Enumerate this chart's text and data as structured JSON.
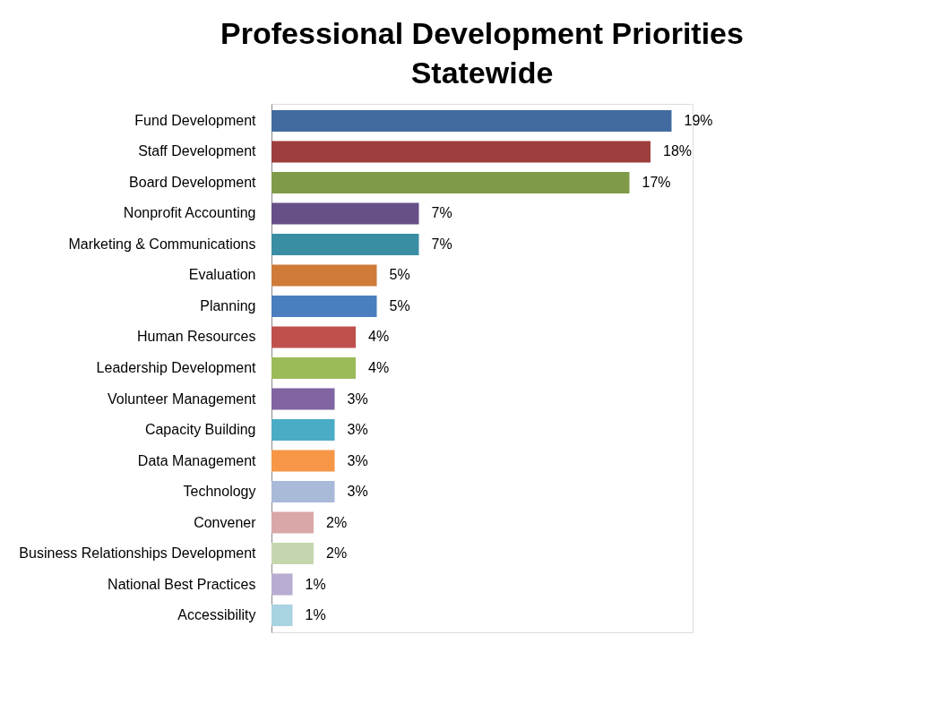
{
  "chart_data": {
    "type": "bar",
    "orientation": "horizontal",
    "title": "Professional Development Priorities Statewide",
    "categories": [
      "Fund Development",
      "Staff Development",
      "Board Development",
      "Nonprofit Accounting",
      "Marketing & Communications",
      "Evaluation",
      "Planning",
      "Human Resources",
      "Leadership Development",
      "Volunteer Management",
      "Capacity Building",
      "Data Management",
      "Technology",
      "Convener",
      "Business Relationships Development",
      "National Best Practices",
      "Accessibility"
    ],
    "values": [
      19,
      18,
      17,
      7,
      7,
      5,
      5,
      4,
      4,
      3,
      3,
      3,
      3,
      2,
      2,
      1,
      1
    ],
    "colors": [
      "#416b9f",
      "#9e3e3c",
      "#7f9b49",
      "#674f87",
      "#3a8ea3",
      "#d07b39",
      "#4a7ebf",
      "#c0504d",
      "#9bbb59",
      "#8064a2",
      "#4bacc6",
      "#f79646",
      "#a9bad9",
      "#d9a7a7",
      "#c5d6ae",
      "#b8add0",
      "#a8d3e0"
    ],
    "value_labels": [
      "19%",
      "18%",
      "17%",
      "7%",
      "7%",
      "5%",
      "5%",
      "4%",
      "4%",
      "3%",
      "3%",
      "3%",
      "3%",
      "2%",
      "2%",
      "1%",
      "1%"
    ],
    "tick_labels": "y"
  }
}
